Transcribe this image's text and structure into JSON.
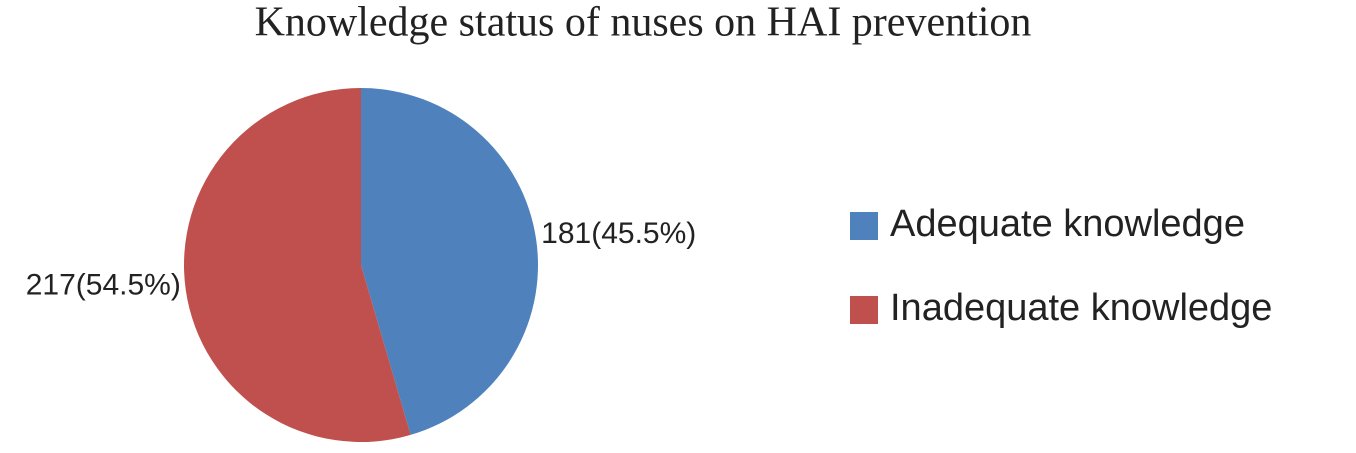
{
  "chart_data": {
    "type": "pie",
    "title": "Knowledge status of nuses on HAI prevention",
    "categories": [
      "Adequate knowledge",
      "Inadequate knowledge"
    ],
    "values": [
      181,
      217
    ],
    "value_labels": [
      "181(45.5%)",
      "217(54.5%)"
    ],
    "colors": [
      "#4f81bd",
      "#c0504d"
    ],
    "legend": "right"
  }
}
